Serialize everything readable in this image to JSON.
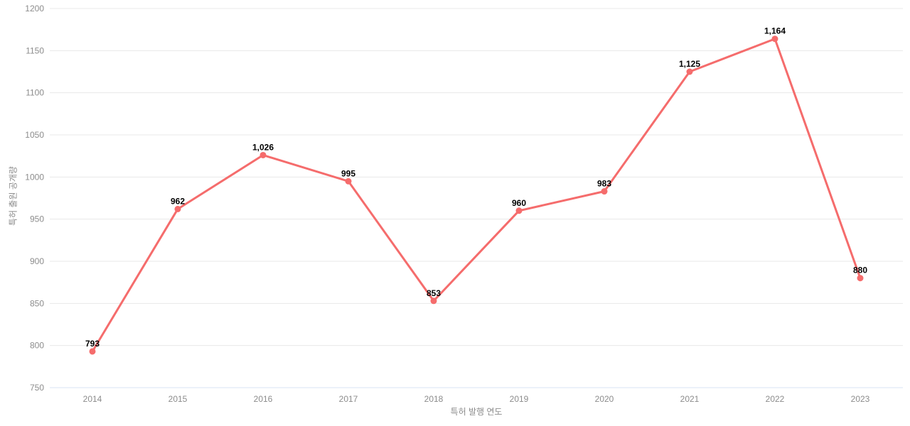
{
  "chart_data": {
    "type": "line",
    "categories": [
      "2014",
      "2015",
      "2016",
      "2017",
      "2018",
      "2019",
      "2020",
      "2021",
      "2022",
      "2023"
    ],
    "series": [
      {
        "name": "특허 출원 공개량",
        "values": [
          793,
          962,
          1026,
          995,
          853,
          960,
          983,
          1125,
          1164,
          880
        ]
      }
    ],
    "data_labels": [
      "793",
      "962",
      "1,026",
      "995",
      "853",
      "960",
      "983",
      "1,125",
      "1,164",
      "880"
    ],
    "title": "",
    "xlabel": "특허 발행 연도",
    "ylabel": "특허 출원 공개량",
    "ylim": [
      750,
      1200
    ],
    "ytick_step": 50,
    "ytick_labels": [
      "750",
      "800",
      "850",
      "900",
      "950",
      "1000",
      "1050",
      "1100",
      "1150",
      "1200"
    ],
    "grid": true,
    "legend": false,
    "marker": "circle"
  },
  "colors": {
    "line": "#F56C6C",
    "marker": "#F56C6C",
    "grid_line": "#E8E8E8",
    "axis_line": "#DAE3F3",
    "tick_label": "#8C8C8C",
    "axis_name": "#8C8C8C",
    "data_label": "#000000",
    "background": "#FFFFFF"
  }
}
